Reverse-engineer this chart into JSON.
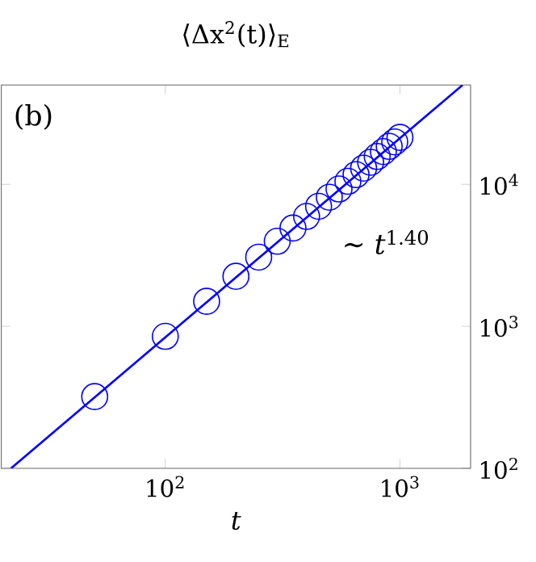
{
  "chart_data": {
    "type": "scatter",
    "title": "⟨Δx$^{2}$(t)⟩$_{E}$",
    "xlabel": "*t*",
    "log": "xy",
    "xlim": [
      20,
      2000
    ],
    "ylim": [
      100,
      50000
    ],
    "xticks": [
      {
        "value": 100,
        "label": "10$^{2}$"
      },
      {
        "value": 1000,
        "label": "10$^{3}$"
      }
    ],
    "yticks": [
      {
        "value": 100,
        "label": "10$^{2}$"
      },
      {
        "value": 1000,
        "label": "10$^{3}$"
      },
      {
        "value": 10000,
        "label": "10$^{4}$"
      }
    ],
    "annotations": [
      "(b)",
      "∼ *t*$^{1.40}$"
    ],
    "series": [
      {
        "marker": "circle",
        "color": "#0000ff",
        "x": [
          50,
          100,
          150,
          200,
          250,
          300,
          350,
          400,
          450,
          500,
          550,
          600,
          650,
          700,
          750,
          800,
          850,
          900,
          950,
          1000
        ],
        "values": [
          320,
          850,
          1500,
          2250,
          3070,
          3970,
          4920,
          5940,
          7000,
          8110,
          9270,
          10500,
          11700,
          13000,
          14300,
          15700,
          17000,
          18500,
          19900,
          21400
        ]
      },
      {
        "type": "line",
        "marker": "none",
        "color": "#0000ff",
        "x": [
          22,
          1850
        ],
        "values": [
          100,
          50000
        ]
      }
    ]
  }
}
